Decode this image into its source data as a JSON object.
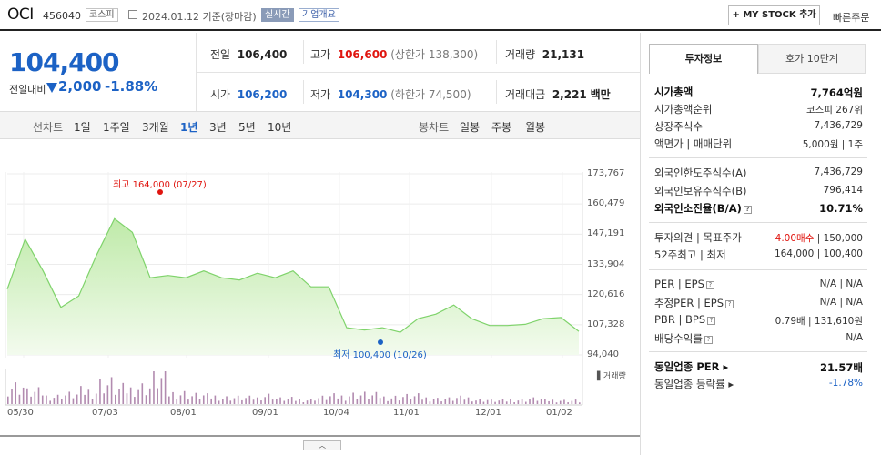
{
  "header": {
    "name": "OCI",
    "code": "456040",
    "market": "코스피",
    "date": "2024.01.12  기준(장마감)",
    "live": "실시간",
    "corp_info": "기업개요",
    "mystock": "+ MY STOCK 추가",
    "quick_order": "빠른주문"
  },
  "price": {
    "current": "104,400",
    "change_label": "전일대비",
    "change": "2,000",
    "change_pct": "-1.88%"
  },
  "quote": {
    "prev_label": "전일",
    "prev": "106,400",
    "high_label": "고가",
    "high": "106,600",
    "upper_limit": "(상한가 138,300)",
    "volume_label": "거래량",
    "volume": "21,131",
    "open_label": "시가",
    "open": "106,200",
    "low_label": "저가",
    "low": "104,300",
    "lower_limit": "(하한가 74,500)",
    "amount_label": "거래대금",
    "amount": "2,221",
    "amount_unit": "백만"
  },
  "periods": {
    "line_label": "선차트",
    "items": [
      "1일",
      "1주일",
      "3개월",
      "1년",
      "3년",
      "5년",
      "10년"
    ],
    "candle_label": "봉차트",
    "candles": [
      "일봉",
      "주봉",
      "월봉"
    ]
  },
  "annotations": {
    "max": "최고 164,000 (07/27)",
    "min": "최저 100,400 (10/26)",
    "volume_legend": "거래량"
  },
  "chart_data": {
    "type": "area",
    "x": [
      "05/30",
      "06/05",
      "06/12",
      "06/19",
      "06/26",
      "07/03",
      "07/10",
      "07/17",
      "07/24",
      "07/31",
      "08/07",
      "08/14",
      "08/21",
      "08/28",
      "09/04",
      "09/11",
      "09/18",
      "09/25",
      "10/02",
      "10/09",
      "10/16",
      "10/23",
      "10/30",
      "11/06",
      "11/13",
      "11/20",
      "11/27",
      "12/04",
      "12/11",
      "12/18",
      "12/26",
      "01/02",
      "01/12"
    ],
    "values": [
      123000,
      145000,
      131000,
      115000,
      120000,
      138000,
      154000,
      148000,
      128000,
      129000,
      128000,
      131000,
      128000,
      127000,
      130000,
      128000,
      131000,
      124000,
      124000,
      106000,
      105000,
      106000,
      104000,
      110000,
      112000,
      116000,
      110000,
      107000,
      107000,
      107500,
      110000,
      110500,
      104400
    ],
    "volume": [
      42,
      28,
      18,
      22,
      30,
      48,
      35,
      40,
      60,
      25,
      20,
      18,
      15,
      14,
      20,
      12,
      10,
      15,
      18,
      22,
      20,
      16,
      18,
      14,
      12,
      14,
      10,
      8,
      10,
      12,
      9,
      8,
      6
    ],
    "yticks": [
      "173,767",
      "160,479",
      "147,191",
      "133,904",
      "120,616",
      "107,328",
      "94,040"
    ],
    "ylim": [
      94040,
      173767
    ],
    "xticks": [
      "05/30",
      "07/03",
      "08/01",
      "09/01",
      "10/04",
      "11/01",
      "12/01",
      "01/02"
    ],
    "color": "#7fd36b"
  },
  "panel": {
    "tab_active": "투자정보",
    "tab_other": "호가 10단계",
    "rows1": [
      {
        "k": "시가총액",
        "v": "7,764억원",
        "bold": true
      },
      {
        "k": "시가총액순위",
        "v": "코스피 267위"
      },
      {
        "k": "상장주식수",
        "v": "7,436,729"
      },
      {
        "k": "액면가 | 매매단위",
        "v": "5,000원 | 1주"
      }
    ],
    "rows2": [
      {
        "k": "외국인한도주식수(A)",
        "v": "7,436,729"
      },
      {
        "k": "외국인보유주식수(B)",
        "v": "796,414"
      },
      {
        "k": "외국인소진율(B/A)",
        "v": "10.71%",
        "bold": true
      }
    ],
    "rows3": [
      {
        "k": "투자의견 | 목표주가",
        "v1": "4.00매수",
        "v2": "150,000"
      },
      {
        "k": "52주최고 | 최저",
        "v1": "164,000",
        "v2": "100,400"
      }
    ],
    "rows4": [
      {
        "k": "PER | EPS",
        "v": "N/A | N/A"
      },
      {
        "k": "추정PER | EPS",
        "v": "N/A | N/A"
      },
      {
        "k": "PBR | BPS",
        "v": "0.79배 | 131,610원"
      },
      {
        "k": "배당수익률",
        "v": "N/A"
      }
    ],
    "rows5": [
      {
        "k": "동일업종 PER",
        "v": "21.57배"
      },
      {
        "k": "동일업종 등락률",
        "v": "-1.78%"
      }
    ]
  }
}
